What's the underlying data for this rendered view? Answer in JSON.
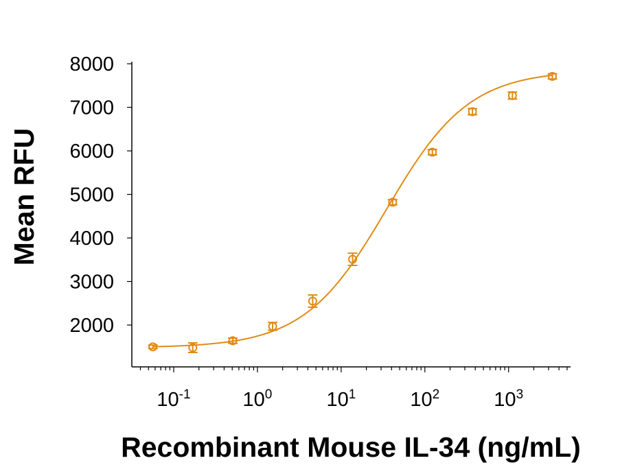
{
  "chart_data": {
    "type": "scatter",
    "title": "",
    "xlabel": "Recombinant Mouse IL-34 (ng/mL)",
    "ylabel": "Mean RFU",
    "x_scale": "log",
    "xlim": [
      0.0316,
      5500
    ],
    "ylim": [
      1040,
      8000
    ],
    "x_ticks": [
      {
        "value": 0.1,
        "base": "10",
        "exp": "-1"
      },
      {
        "value": 1,
        "base": "10",
        "exp": "0"
      },
      {
        "value": 10,
        "base": "10",
        "exp": "1"
      },
      {
        "value": 100,
        "base": "10",
        "exp": "2"
      },
      {
        "value": 1000,
        "base": "10",
        "exp": "3"
      }
    ],
    "y_ticks": [
      "2000",
      "3000",
      "4000",
      "5000",
      "6000",
      "7000",
      "8000"
    ],
    "grid": false,
    "color": "#E08A12",
    "series": [
      {
        "x": [
          0.0564,
          0.169,
          0.508,
          1.52,
          4.57,
          13.7,
          41.2,
          123,
          370,
          1111,
          3333
        ],
        "y": [
          1500,
          1480,
          1640,
          1970,
          2550,
          3510,
          4820,
          5970,
          6900,
          7270,
          7710
        ],
        "error": [
          40,
          110,
          60,
          90,
          140,
          140,
          60,
          60,
          70,
          80,
          60
        ],
        "fit": "sigmoidal curve"
      }
    ]
  }
}
